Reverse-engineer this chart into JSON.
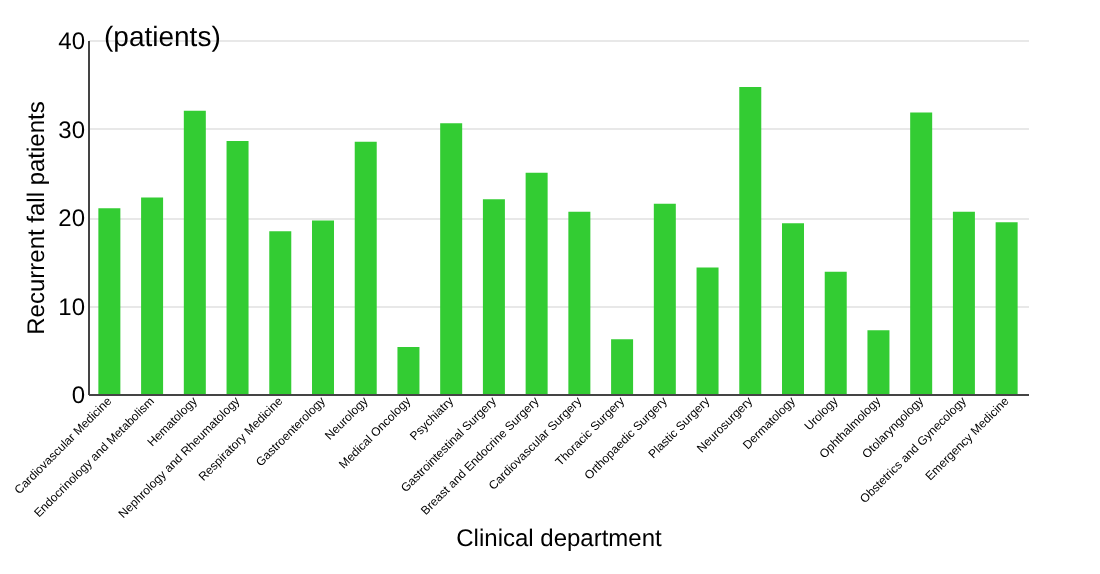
{
  "chart_data": {
    "type": "bar",
    "xlabel": "Clinical department",
    "ylabel": "Recurrent fall patients",
    "annotations": [
      "(patients)"
    ],
    "categories": [
      "Cardiovascular Medicine",
      "Endocrinology and Metabolism",
      "Hematology",
      "Nephrology and Rheumatology",
      "Respiratory Medicine",
      "Gastroenterology",
      "Neurology",
      "Medical Oncology",
      "Psychiatry",
      "Gastrointestinal Surgery",
      "Breast and Endocrine Surgery",
      "Cardiovascular Surgery",
      "Thoracic Surgery",
      "Orthopaedic Surgery",
      "Plastic Surgery",
      "Neurosurgery",
      "Dermatology",
      "Urology",
      "Ophthalmology",
      "Otolaryngology",
      "Obstetrics and Gynecology",
      "Emergency Medicine"
    ],
    "values": [
      21,
      22.2,
      32,
      28.6,
      18.4,
      19.6,
      28.5,
      5.3,
      30.6,
      22,
      25,
      20.6,
      6.2,
      21.5,
      14.3,
      34.7,
      19.3,
      13.8,
      7.2,
      31.8,
      20.6,
      19.4
    ],
    "color": "#33cc33",
    "ylim": [
      0,
      40
    ],
    "yticks": [
      0,
      10,
      20,
      30,
      40
    ],
    "grid": "y"
  }
}
